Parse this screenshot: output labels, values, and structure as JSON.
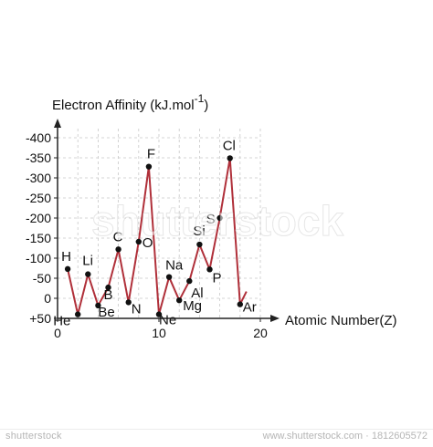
{
  "chart_data": {
    "type": "line",
    "title": "",
    "ylabel": "Electron Affinity (kJ.mol",
    "ylabel_sup": "-1",
    "ylabel_close": ")",
    "xlabel": "Atomic Number(Z)",
    "xlim": [
      0,
      20
    ],
    "ylim": [
      50,
      -400
    ],
    "xticks": [
      {
        "value": 0,
        "label": "0"
      },
      {
        "value": 10,
        "label": "10"
      },
      {
        "value": 20,
        "label": "20"
      }
    ],
    "yticks": [
      {
        "value": -400,
        "label": "-400"
      },
      {
        "value": -350,
        "label": "-350"
      },
      {
        "value": -300,
        "label": "-300"
      },
      {
        "value": -250,
        "label": "-250"
      },
      {
        "value": -200,
        "label": "-200"
      },
      {
        "value": -150,
        "label": "-150"
      },
      {
        "value": -100,
        "label": "-100"
      },
      {
        "value": -50,
        "label": "-50"
      },
      {
        "value": 0,
        "label": "0"
      },
      {
        "value": 50,
        "label": "+50"
      }
    ],
    "grid": true,
    "line_color": "#b0303a",
    "point_color": "#111111",
    "points": [
      {
        "z": 1,
        "label": "H",
        "value": -73
      },
      {
        "z": 2,
        "label": "He",
        "value": 40
      },
      {
        "z": 3,
        "label": "Li",
        "value": -60
      },
      {
        "z": 4,
        "label": "Be",
        "value": 18
      },
      {
        "z": 5,
        "label": "B",
        "value": -27
      },
      {
        "z": 6,
        "label": "C",
        "value": -122
      },
      {
        "z": 7,
        "label": "N",
        "value": 10
      },
      {
        "z": 8,
        "label": "O",
        "value": -141
      },
      {
        "z": 9,
        "label": "F",
        "value": -328
      },
      {
        "z": 10,
        "label": "Ne",
        "value": 40
      },
      {
        "z": 11,
        "label": "Na",
        "value": -53
      },
      {
        "z": 12,
        "label": "Mg",
        "value": 5
      },
      {
        "z": 13,
        "label": "Al",
        "value": -43
      },
      {
        "z": 14,
        "label": "Si",
        "value": -134
      },
      {
        "z": 15,
        "label": "P",
        "value": -72
      },
      {
        "z": 16,
        "label": "S",
        "value": -200
      },
      {
        "z": 17,
        "label": "Cl",
        "value": -349
      },
      {
        "z": 18,
        "label": "Ar",
        "value": 15
      }
    ]
  },
  "footer": {
    "logo": "shutterstock",
    "image_id": "www.shutterstock.com · 1812605572"
  },
  "watermark": "shutterstock"
}
